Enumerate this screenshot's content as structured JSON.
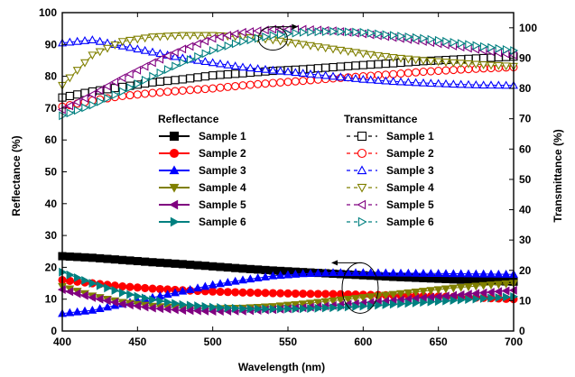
{
  "chart_data": {
    "type": "line",
    "xlabel": "Wavelength (nm)",
    "ylabel_left": "Reflectance (%)",
    "ylabel_right": "Transmittance (%)",
    "xlim": [
      400,
      700
    ],
    "ylim_left": [
      0,
      100
    ],
    "ylim_right": [
      0,
      105
    ],
    "xticks": [
      400,
      450,
      500,
      550,
      600,
      650,
      700
    ],
    "yticks_left": [
      0,
      10,
      20,
      30,
      40,
      50,
      60,
      70,
      80,
      90,
      100
    ],
    "yticks_right": [
      0,
      10,
      20,
      30,
      40,
      50,
      60,
      70,
      80,
      90,
      100
    ],
    "grid": false,
    "legend_reflectance_title": "Reflectance",
    "legend_transmittance_title": "Transmittance",
    "x": [
      400,
      420,
      440,
      460,
      480,
      500,
      520,
      540,
      560,
      580,
      600,
      620,
      640,
      660,
      680,
      700
    ],
    "reflectance": [
      {
        "name": "Sample 1",
        "marker": "square",
        "filled": true,
        "color": "#000000",
        "values": [
          23.5,
          23,
          22.3,
          21.6,
          21,
          20.3,
          19.6,
          19,
          18.5,
          18,
          17.5,
          17,
          16.6,
          16.2,
          15.8,
          15.5
        ]
      },
      {
        "name": "Sample 2",
        "marker": "circle",
        "filled": true,
        "color": "#ff0000",
        "values": [
          16,
          15,
          14,
          13.3,
          12.8,
          12.4,
          12.1,
          11.9,
          11.7,
          11.6,
          11.4,
          11.2,
          11,
          10.7,
          10.4,
          10
        ]
      },
      {
        "name": "Sample 3",
        "marker": "triangle-up",
        "filled": true,
        "color": "#0000ff",
        "values": [
          5.5,
          6.5,
          8.5,
          10.5,
          12.5,
          14.5,
          16,
          17.3,
          18,
          18.3,
          18.3,
          18.2,
          18.1,
          18,
          17.9,
          17.8
        ]
      },
      {
        "name": "Sample 4",
        "marker": "triangle-down",
        "filled": true,
        "color": "#808000",
        "values": [
          14,
          11,
          9,
          7.8,
          7.2,
          7,
          7.2,
          7.7,
          8.5,
          9.5,
          10.5,
          11.5,
          12.5,
          13.5,
          14.3,
          15
        ]
      },
      {
        "name": "Sample 5",
        "marker": "triangle-left",
        "filled": true,
        "color": "#800080",
        "values": [
          13,
          10.5,
          8.5,
          7.2,
          6.5,
          6.2,
          6.3,
          6.7,
          7.3,
          8,
          8.8,
          9.6,
          10.4,
          11.2,
          12,
          12.8
        ]
      },
      {
        "name": "Sample 6",
        "marker": "triangle-right",
        "filled": true,
        "color": "#008080",
        "values": [
          18.5,
          15,
          12,
          9.8,
          8.3,
          7.5,
          7,
          6.9,
          7,
          7.3,
          7.8,
          8.4,
          9,
          9.6,
          10.2,
          10.8
        ]
      }
    ],
    "transmittance": [
      {
        "name": "Sample 1",
        "marker": "square",
        "filled": false,
        "color": "#000000",
        "values": [
          77,
          79,
          80.5,
          82,
          83,
          84.3,
          85,
          85.8,
          86.3,
          87,
          87.7,
          88.3,
          89,
          89.5,
          90,
          90.5
        ]
      },
      {
        "name": "Sample 2",
        "marker": "circle",
        "filled": false,
        "color": "#ff0000",
        "values": [
          74,
          76,
          77.5,
          78.5,
          79.3,
          80,
          81,
          81.8,
          82.5,
          83.3,
          84,
          84.7,
          85.5,
          86.1,
          86.6,
          87
        ]
      },
      {
        "name": "Sample 3",
        "marker": "triangle-up",
        "filled": false,
        "color": "#0000ff",
        "values": [
          95,
          96,
          94,
          92,
          90,
          88.5,
          87,
          86,
          85,
          84,
          83,
          82.3,
          81.8,
          81.4,
          81.1,
          81
        ]
      },
      {
        "name": "Sample 4",
        "marker": "triangle-down",
        "filled": false,
        "color": "#808000",
        "values": [
          81,
          91,
          95.5,
          97,
          97.5,
          97.5,
          97,
          96,
          94.5,
          93,
          91.5,
          90.2,
          89.2,
          88.5,
          87.8,
          87.3
        ]
      },
      {
        "name": "Sample 5",
        "marker": "triangle-left",
        "filled": false,
        "color": "#800080",
        "values": [
          73,
          78,
          83.5,
          88.5,
          93,
          96.5,
          98.5,
          99.5,
          99.5,
          99,
          98,
          96.8,
          95.5,
          94,
          92.5,
          91
        ]
      },
      {
        "name": "Sample 6",
        "marker": "triangle-right",
        "filled": false,
        "color": "#008080",
        "values": [
          71,
          74.5,
          79,
          84,
          88.5,
          92.5,
          95.5,
          97.5,
          98.5,
          98.8,
          98.5,
          97.5,
          96.5,
          95.2,
          93.8,
          92.5
        ]
      }
    ]
  }
}
